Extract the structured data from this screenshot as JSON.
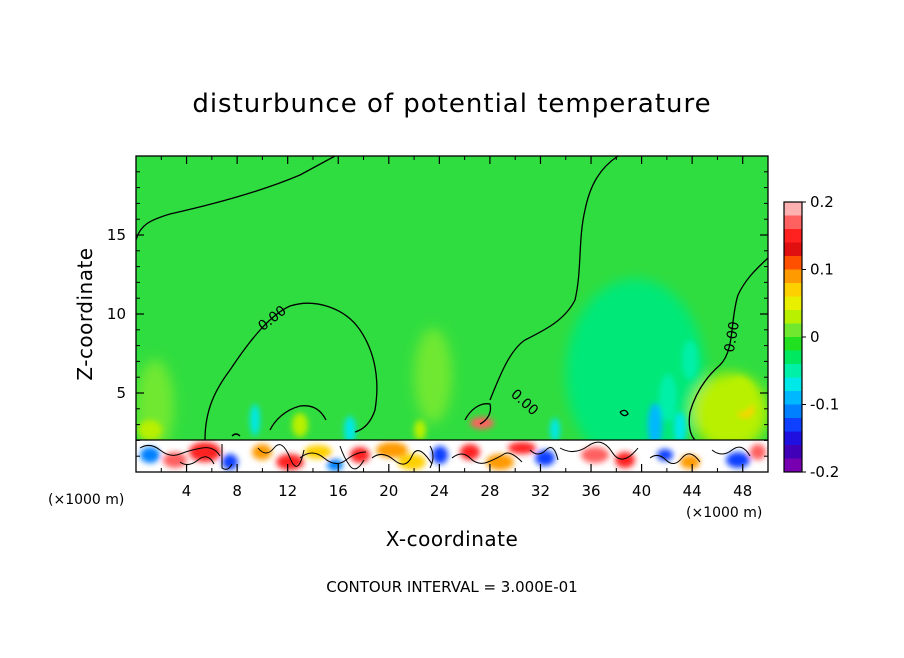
{
  "chart_data": {
    "type": "heatmap",
    "title": "disturbunce of potential temperature",
    "xlabel": "X-coordinate",
    "ylabel": "Z-coordinate",
    "x_unit_label": "(×1000 m)",
    "x_ticks": [
      "4",
      "8",
      "12",
      "16",
      "20",
      "24",
      "28",
      "32",
      "36",
      "40",
      "44",
      "48"
    ],
    "y_ticks": [
      "5",
      "10",
      "15"
    ],
    "xlim": [
      0,
      50
    ],
    "ylim": [
      0,
      20
    ],
    "contour_interval_text": "CONTOUR INTERVAL = 3.000E-01",
    "contour_labels": [
      {
        "text": "0.00",
        "x": 11,
        "z": 9.5
      },
      {
        "text": "0.00",
        "x": 30.5,
        "z": 4.2
      },
      {
        "text": "0.00",
        "x": 47.5,
        "z": 8.5
      }
    ],
    "colorbar": {
      "ticks": [
        "0.2",
        "0.1",
        "0",
        "-0.1",
        "-0.2"
      ],
      "range": [
        -0.2,
        0.2
      ],
      "colors": [
        "#ffb0b0",
        "#ff6060",
        "#ff2020",
        "#e01010",
        "#ff5000",
        "#ff9a00",
        "#ffd000",
        "#e8f000",
        "#b8f000",
        "#70e830",
        "#20e020",
        "#00e860",
        "#00f0a8",
        "#00e8e8",
        "#00b8ff",
        "#0080ff",
        "#1040ff",
        "#2010e0",
        "#4000b8",
        "#7800b0"
      ]
    },
    "fields": {
      "background_color": "#30dd40",
      "lower_boundary_z": 2.1,
      "regions": [
        {
          "name": "left-warm",
          "x": [
            0,
            3
          ],
          "z": [
            2.1,
            8
          ],
          "color": "#70e830"
        },
        {
          "name": "center-warm",
          "x": [
            22,
            25
          ],
          "z": [
            4,
            10
          ],
          "color": "#70e830"
        },
        {
          "name": "cool-plume",
          "x": [
            34,
            45
          ],
          "z": [
            2.1,
            14
          ],
          "color": "#00e878"
        },
        {
          "name": "right-warm",
          "x": [
            44,
            50
          ],
          "z": [
            2.1,
            7
          ],
          "color": "#b8f000"
        }
      ]
    }
  }
}
